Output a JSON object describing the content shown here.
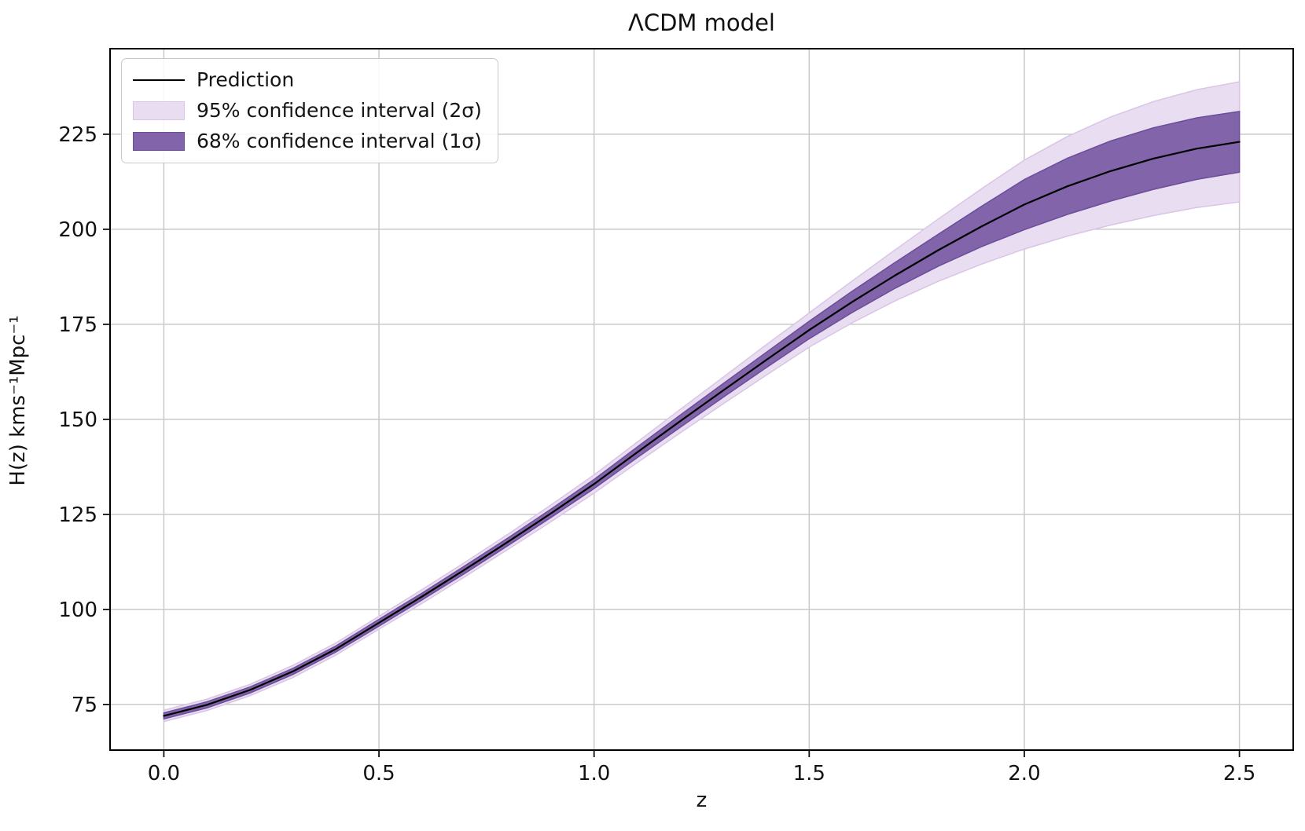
{
  "title": "ΛCDM model",
  "chart_data": {
    "type": "line",
    "title": "ΛCDM model",
    "xlabel": "z",
    "ylabel": "H(z) kms⁻¹Mpc⁻¹",
    "xlim": [
      -0.125,
      2.625
    ],
    "ylim": [
      63,
      247.5
    ],
    "xticks": [
      "0.0",
      "0.5",
      "1.0",
      "1.5",
      "2.0",
      "2.5"
    ],
    "yticks": [
      75,
      100,
      125,
      150,
      175,
      200,
      225
    ],
    "grid": true,
    "grid_color": "#c9c9c9",
    "legend_position": "upper-left",
    "x": [
      0.0,
      0.1,
      0.2,
      0.3,
      0.4,
      0.5,
      0.6,
      0.7,
      0.8,
      0.9,
      1.0,
      1.1,
      1.2,
      1.3,
      1.4,
      1.5,
      1.6,
      1.7,
      1.8,
      1.9,
      2.0,
      2.1,
      2.2,
      2.3,
      2.4,
      2.5
    ],
    "series": [
      {
        "name": "Prediction",
        "kind": "line",
        "color": "#000000",
        "values": [
          72.0,
          74.9,
          78.8,
          83.7,
          89.6,
          96.5,
          103.4,
          110.5,
          117.8,
          125.3,
          133.0,
          141.3,
          149.5,
          157.6,
          165.6,
          173.5,
          180.9,
          187.9,
          194.5,
          200.7,
          206.5,
          211.3,
          215.3,
          218.6,
          221.2,
          223.0
        ]
      },
      {
        "name": "95% confidence interval (2σ)",
        "kind": "band",
        "fill": "#e9def1",
        "edge": "#d9c4e6",
        "lower": [
          70.5,
          73.4,
          77.3,
          82.1,
          88.0,
          94.8,
          101.6,
          108.6,
          115.8,
          123.1,
          130.6,
          138.6,
          146.4,
          154.1,
          161.6,
          169.0,
          175.4,
          181.2,
          186.3,
          190.8,
          194.8,
          198.2,
          201.1,
          203.6,
          205.7,
          207.2
        ],
        "upper": [
          73.5,
          76.4,
          80.3,
          85.3,
          91.2,
          98.2,
          105.2,
          112.4,
          119.8,
          127.5,
          135.4,
          144.0,
          152.6,
          161.1,
          169.6,
          178.0,
          186.4,
          194.6,
          202.7,
          210.6,
          218.2,
          224.4,
          229.5,
          233.6,
          236.7,
          238.8
        ]
      },
      {
        "name": "68% confidence interval (1σ)",
        "kind": "band",
        "fill": "#8164a9",
        "edge": "#6b4d99",
        "lower": [
          71.2,
          74.1,
          78.0,
          82.9,
          88.8,
          95.6,
          102.5,
          109.5,
          116.8,
          124.2,
          131.8,
          139.9,
          147.9,
          155.8,
          163.6,
          171.2,
          178.1,
          184.5,
          190.3,
          195.4,
          199.9,
          203.9,
          207.4,
          210.5,
          213.1,
          215.0
        ],
        "upper": [
          72.8,
          75.7,
          79.6,
          84.5,
          90.4,
          97.4,
          104.3,
          111.5,
          118.8,
          126.4,
          134.2,
          142.7,
          151.1,
          159.4,
          167.6,
          175.8,
          183.7,
          191.3,
          198.7,
          206.0,
          213.1,
          218.7,
          223.2,
          226.7,
          229.3,
          231.0
        ]
      }
    ]
  },
  "legend": {
    "items": [
      {
        "label": "Prediction"
      },
      {
        "label": "95% confidence interval (2σ)"
      },
      {
        "label": "68% confidence interval (1σ)"
      }
    ]
  }
}
